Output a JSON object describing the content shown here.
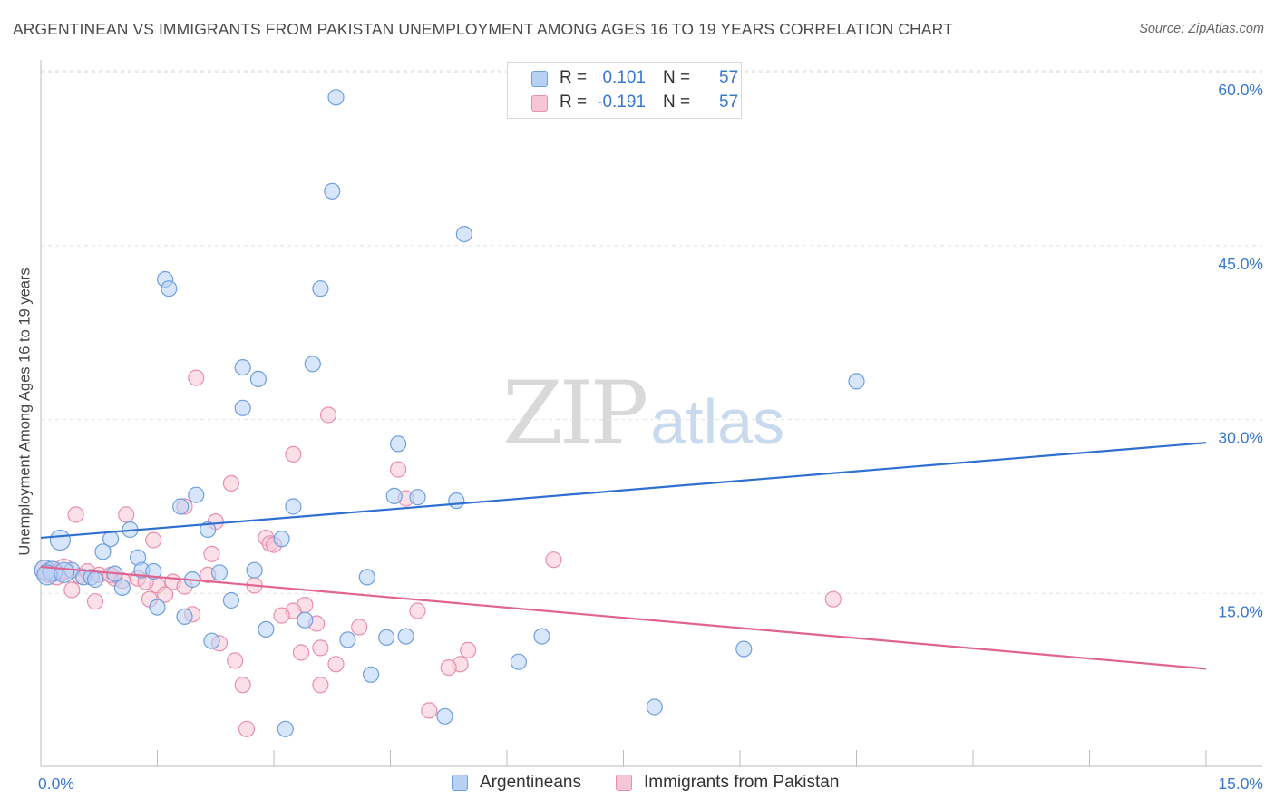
{
  "header": {
    "title": "ARGENTINEAN VS IMMIGRANTS FROM PAKISTAN UNEMPLOYMENT AMONG AGES 16 TO 19 YEARS CORRELATION CHART",
    "source": "Source: ZipAtlas.com"
  },
  "watermark": {
    "zip": "ZIP",
    "atlas": "atlas"
  },
  "legend": {
    "rows": [
      {
        "r_label": "R =",
        "r_value": "0.101",
        "n_label": "N =",
        "n_value": "57"
      },
      {
        "r_label": "R =",
        "r_value": "-0.191",
        "n_label": "N =",
        "n_value": "57"
      }
    ]
  },
  "bottom_legend": {
    "series1": "Argentineans",
    "series2": "Immigrants from Pakistan"
  },
  "chart_data": {
    "type": "scatter",
    "title": "ARGENTINEAN VS IMMIGRANTS FROM PAKISTAN UNEMPLOYMENT AMONG AGES 16 TO 19 YEARS CORRELATION CHART",
    "xlabel": "",
    "ylabel": "Unemployment Among Ages 16 to 19 years",
    "xlim": [
      0,
      15
    ],
    "ylim": [
      0,
      60
    ],
    "x_tick_labels": {
      "left": "0.0%",
      "right": "15.0%"
    },
    "y_ticks": [
      {
        "value": 15,
        "label": "15.0%"
      },
      {
        "value": 30,
        "label": "30.0%"
      },
      {
        "value": 45,
        "label": "45.0%"
      },
      {
        "value": 60,
        "label": "60.0%"
      }
    ],
    "grid": true,
    "colors": {
      "blue_fill": "#b7d1f5",
      "blue_stroke": "#6e9fe0",
      "blue_line": "#2f6fcf",
      "pink_fill": "#f7c6d6",
      "pink_stroke": "#e98fac",
      "pink_line": "#e0648e",
      "grid": "#e2e2e2",
      "tick_label": "#3a78cf"
    },
    "series": [
      {
        "name": "Argentineans",
        "color": "#6e9fe0",
        "trend": {
          "x": [
            0,
            15
          ],
          "y": [
            19.8,
            28.0
          ]
        },
        "points": [
          [
            3.8,
            57.8
          ],
          [
            3.75,
            49.7
          ],
          [
            5.45,
            46.0
          ],
          [
            1.6,
            42.1
          ],
          [
            1.65,
            41.3
          ],
          [
            3.6,
            41.3
          ],
          [
            3.5,
            34.8
          ],
          [
            2.6,
            34.5
          ],
          [
            2.8,
            33.5
          ],
          [
            10.5,
            33.3
          ],
          [
            2.6,
            31.0
          ],
          [
            4.6,
            27.9
          ],
          [
            2.0,
            23.5
          ],
          [
            4.55,
            23.4
          ],
          [
            4.85,
            23.3
          ],
          [
            1.8,
            22.5
          ],
          [
            3.25,
            22.5
          ],
          [
            5.35,
            23.0
          ],
          [
            0.25,
            19.6
          ],
          [
            1.15,
            20.5
          ],
          [
            0.9,
            19.7
          ],
          [
            3.1,
            19.7
          ],
          [
            2.15,
            20.5
          ],
          [
            0.8,
            18.6
          ],
          [
            1.25,
            18.1
          ],
          [
            0.05,
            17.0
          ],
          [
            0.15,
            16.9
          ],
          [
            0.4,
            17.0
          ],
          [
            0.55,
            16.4
          ],
          [
            0.65,
            16.4
          ],
          [
            0.95,
            16.7
          ],
          [
            1.3,
            17.0
          ],
          [
            1.45,
            16.9
          ],
          [
            2.75,
            17.0
          ],
          [
            2.3,
            16.8
          ],
          [
            1.95,
            16.2
          ],
          [
            4.2,
            16.4
          ],
          [
            1.05,
            15.5
          ],
          [
            1.5,
            13.8
          ],
          [
            2.45,
            14.4
          ],
          [
            3.4,
            12.7
          ],
          [
            1.85,
            13.0
          ],
          [
            2.9,
            11.9
          ],
          [
            2.2,
            10.9
          ],
          [
            3.95,
            11.0
          ],
          [
            4.45,
            11.2
          ],
          [
            4.7,
            11.3
          ],
          [
            6.45,
            11.3
          ],
          [
            9.05,
            10.2
          ],
          [
            6.15,
            9.1
          ],
          [
            4.25,
            8.0
          ],
          [
            7.9,
            5.2
          ],
          [
            5.2,
            4.4
          ],
          [
            3.15,
            3.3
          ],
          [
            0.08,
            16.6
          ],
          [
            0.3,
            16.8
          ],
          [
            0.7,
            16.2
          ]
        ]
      },
      {
        "name": "Immigrants from Pakistan",
        "color": "#e98fac",
        "trend": {
          "x": [
            0,
            15
          ],
          "y": [
            17.3,
            8.5
          ]
        },
        "points": [
          [
            2.0,
            33.6
          ],
          [
            3.7,
            30.4
          ],
          [
            3.25,
            27.0
          ],
          [
            4.6,
            25.7
          ],
          [
            2.45,
            24.5
          ],
          [
            4.7,
            23.2
          ],
          [
            0.45,
            21.8
          ],
          [
            1.1,
            21.8
          ],
          [
            1.85,
            22.5
          ],
          [
            2.25,
            21.2
          ],
          [
            2.9,
            19.8
          ],
          [
            2.95,
            19.3
          ],
          [
            3.0,
            19.2
          ],
          [
            1.45,
            19.6
          ],
          [
            2.2,
            18.4
          ],
          [
            6.6,
            17.9
          ],
          [
            0.05,
            17.0
          ],
          [
            0.2,
            16.6
          ],
          [
            0.5,
            16.5
          ],
          [
            0.75,
            16.6
          ],
          [
            0.95,
            16.3
          ],
          [
            1.25,
            16.3
          ],
          [
            1.5,
            15.7
          ],
          [
            1.7,
            16.0
          ],
          [
            1.85,
            15.6
          ],
          [
            2.15,
            16.6
          ],
          [
            0.9,
            16.6
          ],
          [
            1.05,
            16.1
          ],
          [
            1.35,
            16.0
          ],
          [
            0.4,
            15.3
          ],
          [
            2.75,
            15.7
          ],
          [
            1.6,
            14.9
          ],
          [
            1.4,
            14.5
          ],
          [
            0.7,
            14.3
          ],
          [
            3.4,
            14.0
          ],
          [
            3.25,
            13.5
          ],
          [
            3.1,
            13.1
          ],
          [
            1.95,
            13.2
          ],
          [
            4.85,
            13.5
          ],
          [
            10.2,
            14.5
          ],
          [
            3.55,
            12.4
          ],
          [
            4.1,
            12.1
          ],
          [
            2.3,
            10.7
          ],
          [
            3.6,
            10.3
          ],
          [
            3.35,
            9.9
          ],
          [
            5.5,
            10.1
          ],
          [
            2.5,
            9.2
          ],
          [
            3.8,
            8.9
          ],
          [
            5.4,
            8.9
          ],
          [
            5.25,
            8.6
          ],
          [
            2.6,
            7.1
          ],
          [
            3.6,
            7.1
          ],
          [
            5.0,
            4.9
          ],
          [
            2.65,
            3.3
          ],
          [
            0.1,
            16.8
          ],
          [
            0.3,
            17.1
          ],
          [
            0.6,
            16.9
          ]
        ]
      }
    ]
  }
}
